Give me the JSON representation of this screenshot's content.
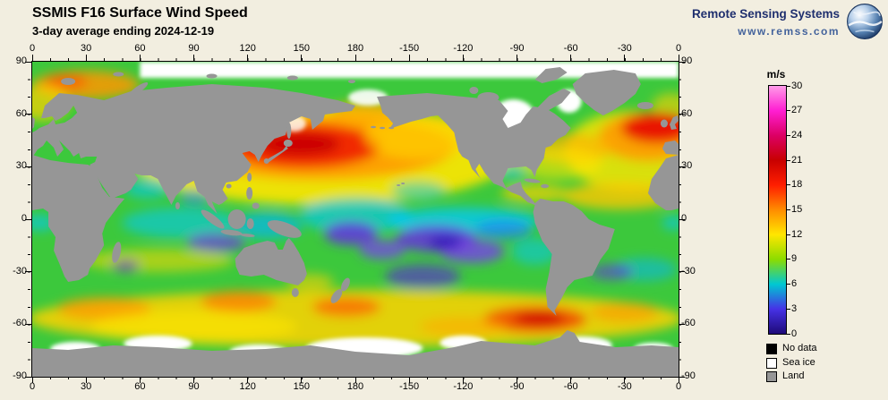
{
  "header": {
    "title": "SSMIS F16 Surface Wind Speed",
    "subtitle": "3-day average ending 2024-12-19"
  },
  "branding": {
    "org_name": "Remote Sensing Systems",
    "website": "www.remss.com",
    "logo": "earth-globe-icon"
  },
  "axes": {
    "lon_labels": [
      "0",
      "30",
      "60",
      "90",
      "120",
      "150",
      "180",
      "-150",
      "-120",
      "-90",
      "-60",
      "-30",
      "0"
    ],
    "lat_labels": [
      "90",
      "60",
      "30",
      "0",
      "-30",
      "-60",
      "-90"
    ]
  },
  "colorbar": {
    "unit": "m/s",
    "min": 0,
    "max": 30,
    "tick_labels": [
      "30",
      "27",
      "24",
      "21",
      "18",
      "15",
      "12",
      "9",
      "6",
      "3",
      "0"
    ],
    "scale": [
      {
        "value": 30,
        "color": "#ff9ce8"
      },
      {
        "value": 27,
        "color": "#ff1ed2"
      },
      {
        "value": 24,
        "color": "#dc0064"
      },
      {
        "value": 21,
        "color": "#c80000"
      },
      {
        "value": 18,
        "color": "#ff1e00"
      },
      {
        "value": 15,
        "color": "#ff8c00"
      },
      {
        "value": 12,
        "color": "#ffe600"
      },
      {
        "value": 9,
        "color": "#8cdc00"
      },
      {
        "value": 6,
        "color": "#00c8d2"
      },
      {
        "value": 3,
        "color": "#4632e6"
      },
      {
        "value": 0,
        "color": "#1e0a78"
      }
    ]
  },
  "legend": {
    "items": [
      {
        "label": "No data",
        "color": "#000000"
      },
      {
        "label": "Sea ice",
        "color": "#ffffff"
      },
      {
        "label": "Land",
        "color": "#969696"
      }
    ]
  },
  "map": {
    "type": "global-wind-speed-heatmap",
    "projection": "equirectangular",
    "lon_range": [
      0,
      360
    ],
    "lat_range": [
      -90,
      90
    ],
    "land_color": "#969696",
    "sea_ice_color": "#ffffff",
    "no_data_color": "#000000"
  }
}
